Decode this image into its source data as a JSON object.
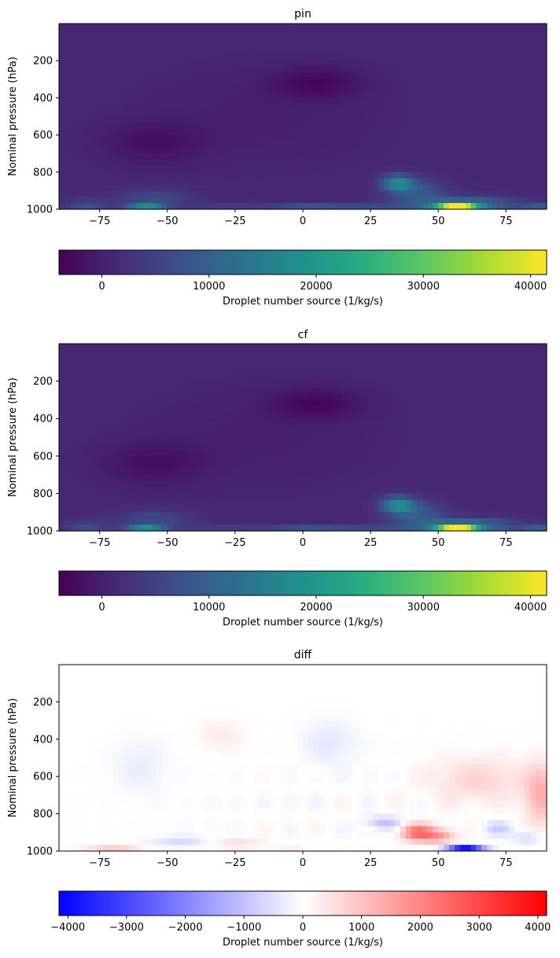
{
  "chart_data": [
    {
      "type": "heatmap",
      "title": "pin",
      "xlabel": "",
      "ylabel": "Nominal pressure (hPa)",
      "xlim": [
        -90,
        90
      ],
      "ylim": [
        1000,
        0
      ],
      "xticks": [
        -75,
        -50,
        -25,
        0,
        25,
        50,
        75
      ],
      "yticks": [
        200,
        400,
        600,
        800,
        1000
      ],
      "colormap": "viridis",
      "colorbar": {
        "label": "Droplet number source (1/kg/s)",
        "range": [
          -4000,
          41500
        ],
        "ticks": [
          0,
          10000,
          20000,
          30000,
          40000
        ],
        "orientation": "horizontal",
        "placement": "bottom"
      },
      "features": [
        {
          "lat": 57,
          "p": 985,
          "value": 41000
        },
        {
          "lat": -58,
          "p": 985,
          "value": 22000
        },
        {
          "lat": 35,
          "p": 870,
          "value": 15000
        },
        {
          "lat": 5,
          "p": 320,
          "value": -3500
        },
        {
          "lat": -55,
          "p": 640,
          "value": -3000
        }
      ]
    },
    {
      "type": "heatmap",
      "title": "cf",
      "xlabel": "",
      "ylabel": "Nominal pressure (hPa)",
      "xlim": [
        -90,
        90
      ],
      "ylim": [
        1000,
        0
      ],
      "xticks": [
        -75,
        -50,
        -25,
        0,
        25,
        50,
        75
      ],
      "yticks": [
        200,
        400,
        600,
        800,
        1000
      ],
      "colormap": "viridis",
      "colorbar": {
        "label": "Droplet number source (1/kg/s)",
        "range": [
          -4000,
          41500
        ],
        "ticks": [
          0,
          10000,
          20000,
          30000,
          40000
        ],
        "orientation": "horizontal",
        "placement": "bottom"
      },
      "features": [
        {
          "lat": 57,
          "p": 985,
          "value": 41500
        },
        {
          "lat": -58,
          "p": 985,
          "value": 22500
        },
        {
          "lat": 35,
          "p": 870,
          "value": 15500
        },
        {
          "lat": 5,
          "p": 320,
          "value": -3500
        },
        {
          "lat": -55,
          "p": 640,
          "value": -3000
        }
      ]
    },
    {
      "type": "heatmap",
      "title": "diff",
      "xlabel": "",
      "ylabel": "Nominal pressure (hPa)",
      "xlim": [
        -90,
        90
      ],
      "ylim": [
        1000,
        0
      ],
      "xticks": [
        -75,
        -50,
        -25,
        0,
        25,
        50,
        75
      ],
      "yticks": [
        200,
        400,
        600,
        800,
        1000
      ],
      "colormap": "bwr",
      "colorbar": {
        "label": "Droplet number source (1/kg/s)",
        "range": [
          -4150,
          4150
        ],
        "ticks": [
          -4000,
          -3000,
          -2000,
          -1000,
          0,
          1000,
          2000,
          3000,
          4000
        ],
        "orientation": "horizontal",
        "placement": "bottom"
      },
      "features": [
        {
          "lat": 60,
          "p": 985,
          "value": -4000
        },
        {
          "lat": 42,
          "p": 900,
          "value": 2300
        },
        {
          "lat": 88,
          "p": 700,
          "value": 1300
        },
        {
          "lat": 30,
          "p": 850,
          "value": -1000
        },
        {
          "lat": 10,
          "p": 420,
          "value": -400
        }
      ]
    }
  ]
}
